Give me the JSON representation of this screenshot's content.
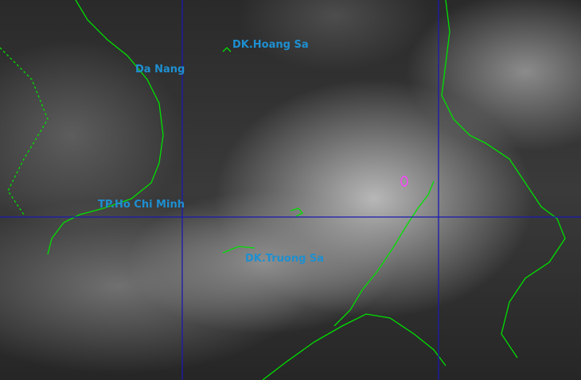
{
  "labels": {
    "hoang_sa": "DK.Hoang Sa",
    "da_nang": "Da Nang",
    "ho_chi_minh": "TP.Ho Chi Minh",
    "truong_sa": "DK.Truong Sa"
  },
  "colors": {
    "coastline": "#00e000",
    "grid": "#1a1ab0",
    "label": "#1e8fd0",
    "storm_marker": "#ff40ff"
  }
}
